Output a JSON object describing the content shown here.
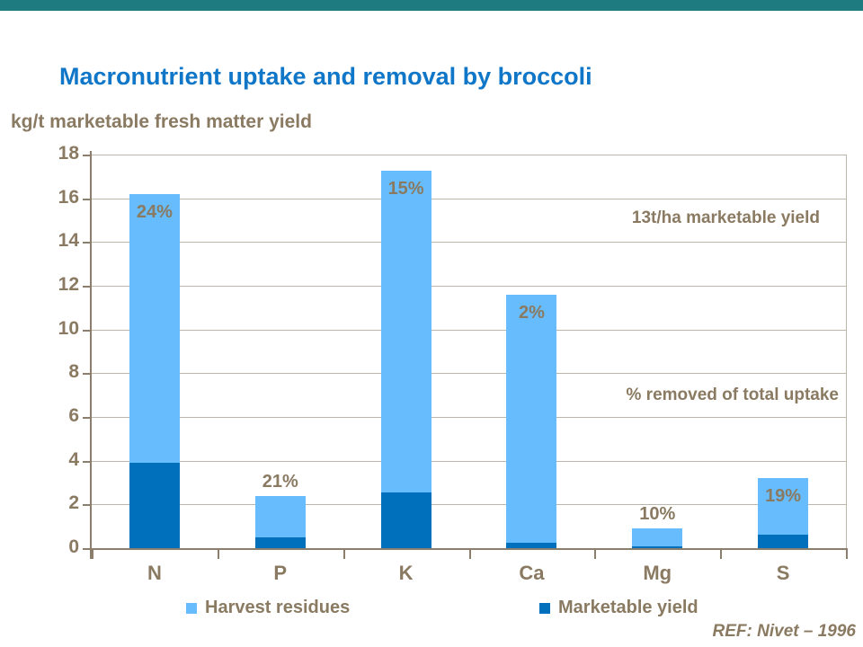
{
  "page": {
    "top_band_color": "#1E7C80",
    "background_color": "#FFFFFF"
  },
  "header": {
    "title": "Macronutrient uptake and removal by broccoli",
    "title_color": "#0F76C8",
    "subtitle": "kg/t marketable fresh matter yield"
  },
  "annotations": {
    "yield_note": "13t/ha marketable yield",
    "removal_note": "% removed of total uptake"
  },
  "legend": {
    "items": [
      {
        "label": "Harvest residues",
        "color": "#66BCFC"
      },
      {
        "label": "Marketable yield",
        "color": "#0070BC"
      }
    ]
  },
  "footer": {
    "reference": "REF: Nivet – 1996"
  },
  "colors": {
    "text_brown": "#8A7A62",
    "axis": "#8C7E6C",
    "gridline": "#BDB6AA",
    "light_blue": "#66BCFC",
    "dark_blue": "#0070BC"
  },
  "chart_data": {
    "type": "bar",
    "stacked": true,
    "title": "Macronutrient uptake and removal by broccoli",
    "ylabel": "kg/t marketable fresh matter yield",
    "xlabel": "",
    "categories": [
      "N",
      "P",
      "K",
      "Ca",
      "Mg",
      "S"
    ],
    "series": [
      {
        "name": "Marketable yield",
        "color": "#0070BC",
        "values": [
          3.9,
          0.5,
          2.55,
          0.25,
          0.09,
          0.6
        ]
      },
      {
        "name": "Harvest residues",
        "color": "#66BCFC",
        "values": [
          12.3,
          1.9,
          14.7,
          11.35,
          0.81,
          2.6
        ]
      }
    ],
    "totals": [
      16.2,
      2.4,
      17.25,
      11.6,
      0.9,
      3.2
    ],
    "bar_labels": [
      "24%",
      "21%",
      "15%",
      "2%",
      "10%",
      "19%"
    ],
    "bar_label_positions": [
      "inside",
      "above",
      "inside",
      "inside",
      "above",
      "inside"
    ],
    "ylim": [
      0,
      18
    ],
    "ytick_step": 2,
    "grid": true,
    "legend_position": "bottom"
  }
}
